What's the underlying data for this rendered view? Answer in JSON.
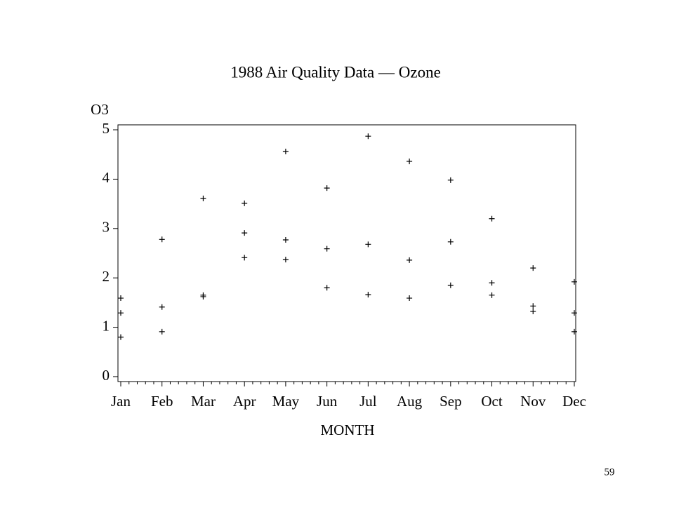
{
  "chart_data": {
    "type": "scatter",
    "title": "1988 Air Quality Data — Ozone",
    "x_label": "MONTH",
    "y_label": "O3",
    "categories": [
      "Jan",
      "Feb",
      "Mar",
      "Apr",
      "May",
      "Jun",
      "Jul",
      "Aug",
      "Sep",
      "Oct",
      "Nov",
      "Dec"
    ],
    "values": [
      [
        1.59,
        1.29,
        0.8
      ],
      [
        2.78,
        1.41,
        0.91
      ],
      [
        3.61,
        1.65,
        1.62
      ],
      [
        3.51,
        2.91,
        2.41
      ],
      [
        4.56,
        2.77,
        2.37
      ],
      [
        3.82,
        2.59,
        1.8
      ],
      [
        4.87,
        2.68,
        1.66
      ],
      [
        4.36,
        2.36,
        1.59
      ],
      [
        3.98,
        2.73,
        1.85
      ],
      [
        3.2,
        1.9,
        1.65
      ],
      [
        2.2,
        1.43,
        1.32
      ],
      [
        1.92,
        1.29,
        0.91
      ]
    ],
    "color": "#000000",
    "ylim": [
      -0.1,
      5.1
    ],
    "yticks": [
      0,
      1,
      2,
      3,
      4,
      5
    ]
  },
  "page_number": "59"
}
